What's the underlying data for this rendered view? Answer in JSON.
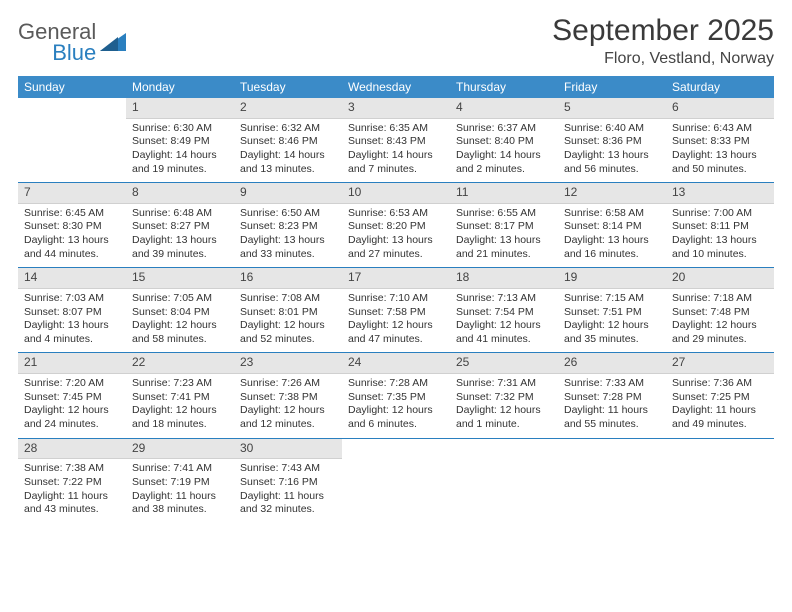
{
  "logo": {
    "line1": "General",
    "line2": "Blue"
  },
  "title": "September 2025",
  "location": "Floro, Vestland, Norway",
  "header_bg": "#3b8bc8",
  "accent_color": "#2a7fbf",
  "daynum_bg": "#e6e6e6",
  "weekdays": [
    "Sunday",
    "Monday",
    "Tuesday",
    "Wednesday",
    "Thursday",
    "Friday",
    "Saturday"
  ],
  "weeks": [
    [
      null,
      {
        "n": "1",
        "sr": "Sunrise: 6:30 AM",
        "ss": "Sunset: 8:49 PM",
        "dl": "Daylight: 14 hours and 19 minutes."
      },
      {
        "n": "2",
        "sr": "Sunrise: 6:32 AM",
        "ss": "Sunset: 8:46 PM",
        "dl": "Daylight: 14 hours and 13 minutes."
      },
      {
        "n": "3",
        "sr": "Sunrise: 6:35 AM",
        "ss": "Sunset: 8:43 PM",
        "dl": "Daylight: 14 hours and 7 minutes."
      },
      {
        "n": "4",
        "sr": "Sunrise: 6:37 AM",
        "ss": "Sunset: 8:40 PM",
        "dl": "Daylight: 14 hours and 2 minutes."
      },
      {
        "n": "5",
        "sr": "Sunrise: 6:40 AM",
        "ss": "Sunset: 8:36 PM",
        "dl": "Daylight: 13 hours and 56 minutes."
      },
      {
        "n": "6",
        "sr": "Sunrise: 6:43 AM",
        "ss": "Sunset: 8:33 PM",
        "dl": "Daylight: 13 hours and 50 minutes."
      }
    ],
    [
      {
        "n": "7",
        "sr": "Sunrise: 6:45 AM",
        "ss": "Sunset: 8:30 PM",
        "dl": "Daylight: 13 hours and 44 minutes."
      },
      {
        "n": "8",
        "sr": "Sunrise: 6:48 AM",
        "ss": "Sunset: 8:27 PM",
        "dl": "Daylight: 13 hours and 39 minutes."
      },
      {
        "n": "9",
        "sr": "Sunrise: 6:50 AM",
        "ss": "Sunset: 8:23 PM",
        "dl": "Daylight: 13 hours and 33 minutes."
      },
      {
        "n": "10",
        "sr": "Sunrise: 6:53 AM",
        "ss": "Sunset: 8:20 PM",
        "dl": "Daylight: 13 hours and 27 minutes."
      },
      {
        "n": "11",
        "sr": "Sunrise: 6:55 AM",
        "ss": "Sunset: 8:17 PM",
        "dl": "Daylight: 13 hours and 21 minutes."
      },
      {
        "n": "12",
        "sr": "Sunrise: 6:58 AM",
        "ss": "Sunset: 8:14 PM",
        "dl": "Daylight: 13 hours and 16 minutes."
      },
      {
        "n": "13",
        "sr": "Sunrise: 7:00 AM",
        "ss": "Sunset: 8:11 PM",
        "dl": "Daylight: 13 hours and 10 minutes."
      }
    ],
    [
      {
        "n": "14",
        "sr": "Sunrise: 7:03 AM",
        "ss": "Sunset: 8:07 PM",
        "dl": "Daylight: 13 hours and 4 minutes."
      },
      {
        "n": "15",
        "sr": "Sunrise: 7:05 AM",
        "ss": "Sunset: 8:04 PM",
        "dl": "Daylight: 12 hours and 58 minutes."
      },
      {
        "n": "16",
        "sr": "Sunrise: 7:08 AM",
        "ss": "Sunset: 8:01 PM",
        "dl": "Daylight: 12 hours and 52 minutes."
      },
      {
        "n": "17",
        "sr": "Sunrise: 7:10 AM",
        "ss": "Sunset: 7:58 PM",
        "dl": "Daylight: 12 hours and 47 minutes."
      },
      {
        "n": "18",
        "sr": "Sunrise: 7:13 AM",
        "ss": "Sunset: 7:54 PM",
        "dl": "Daylight: 12 hours and 41 minutes."
      },
      {
        "n": "19",
        "sr": "Sunrise: 7:15 AM",
        "ss": "Sunset: 7:51 PM",
        "dl": "Daylight: 12 hours and 35 minutes."
      },
      {
        "n": "20",
        "sr": "Sunrise: 7:18 AM",
        "ss": "Sunset: 7:48 PM",
        "dl": "Daylight: 12 hours and 29 minutes."
      }
    ],
    [
      {
        "n": "21",
        "sr": "Sunrise: 7:20 AM",
        "ss": "Sunset: 7:45 PM",
        "dl": "Daylight: 12 hours and 24 minutes."
      },
      {
        "n": "22",
        "sr": "Sunrise: 7:23 AM",
        "ss": "Sunset: 7:41 PM",
        "dl": "Daylight: 12 hours and 18 minutes."
      },
      {
        "n": "23",
        "sr": "Sunrise: 7:26 AM",
        "ss": "Sunset: 7:38 PM",
        "dl": "Daylight: 12 hours and 12 minutes."
      },
      {
        "n": "24",
        "sr": "Sunrise: 7:28 AM",
        "ss": "Sunset: 7:35 PM",
        "dl": "Daylight: 12 hours and 6 minutes."
      },
      {
        "n": "25",
        "sr": "Sunrise: 7:31 AM",
        "ss": "Sunset: 7:32 PM",
        "dl": "Daylight: 12 hours and 1 minute."
      },
      {
        "n": "26",
        "sr": "Sunrise: 7:33 AM",
        "ss": "Sunset: 7:28 PM",
        "dl": "Daylight: 11 hours and 55 minutes."
      },
      {
        "n": "27",
        "sr": "Sunrise: 7:36 AM",
        "ss": "Sunset: 7:25 PM",
        "dl": "Daylight: 11 hours and 49 minutes."
      }
    ],
    [
      {
        "n": "28",
        "sr": "Sunrise: 7:38 AM",
        "ss": "Sunset: 7:22 PM",
        "dl": "Daylight: 11 hours and 43 minutes."
      },
      {
        "n": "29",
        "sr": "Sunrise: 7:41 AM",
        "ss": "Sunset: 7:19 PM",
        "dl": "Daylight: 11 hours and 38 minutes."
      },
      {
        "n": "30",
        "sr": "Sunrise: 7:43 AM",
        "ss": "Sunset: 7:16 PM",
        "dl": "Daylight: 11 hours and 32 minutes."
      },
      null,
      null,
      null,
      null
    ]
  ]
}
